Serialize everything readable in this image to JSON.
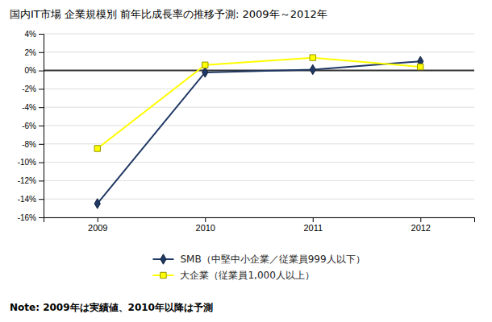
{
  "chart_data": {
    "type": "line",
    "title": "国内IT市場 企業規模別 前年比成長率の推移予測: 2009年～2012年",
    "x": [
      2009,
      2010,
      2011,
      2012
    ],
    "series": [
      {
        "name": "SMB（中堅中小企業／従業員999人以下）",
        "color": "#1f3864",
        "marker": "diamond",
        "values": [
          -14.5,
          -0.2,
          0.1,
          1.0
        ]
      },
      {
        "name": "大企業（従業員1,000人以上）",
        "color": "#ffff00",
        "marker": "square",
        "values": [
          -8.5,
          0.6,
          1.4,
          0.4
        ]
      }
    ],
    "xlim": [
      2008.5,
      2012.5
    ],
    "xticks": [
      2009,
      2010,
      2011,
      2012
    ],
    "ylim": [
      -16,
      4
    ],
    "yticks": [
      {
        "value": -16,
        "label": "-16%"
      },
      {
        "value": -14,
        "label": "-14%"
      },
      {
        "value": -12,
        "label": "-12%"
      },
      {
        "value": -10,
        "label": "-10%"
      },
      {
        "value": -8,
        "label": "-8%"
      },
      {
        "value": -6,
        "label": "-6%"
      },
      {
        "value": -4,
        "label": "-4%"
      },
      {
        "value": -2,
        "label": "-2%"
      },
      {
        "value": 0,
        "label": "0%"
      },
      {
        "value": 2,
        "label": "2%"
      },
      {
        "value": 4,
        "label": "4%"
      }
    ],
    "grid": true,
    "legend": "bottom",
    "annotations": [
      "Note: 2009年は実績値、2010年以降は予測"
    ]
  }
}
